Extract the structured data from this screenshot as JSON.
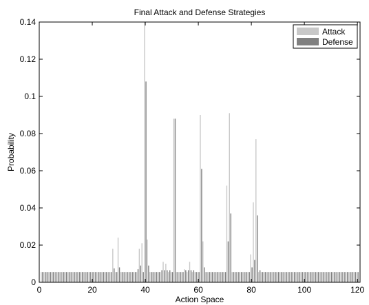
{
  "chart_data": {
    "type": "bar",
    "title": "Final Attack and Defense Strategies",
    "xlabel": "Action Space",
    "ylabel": "Probability",
    "xlim": [
      0,
      121
    ],
    "ylim": [
      0,
      0.14
    ],
    "xticks": [
      "0",
      "20",
      "40",
      "60",
      "80",
      "100",
      "120"
    ],
    "yticks": [
      "0",
      "0.02",
      "0.04",
      "0.06",
      "0.08",
      "0.1",
      "0.12",
      "0.14"
    ],
    "grid": false,
    "legend": "top-right",
    "baseline": 0.0055,
    "series": [
      {
        "name": "Attack",
        "color": "#c8c8c8",
        "x": [
          28,
          30,
          38,
          39,
          40,
          41,
          47,
          48,
          51,
          55,
          57,
          61,
          62,
          71,
          72,
          80,
          81,
          82
        ],
        "values": [
          0.018,
          0.024,
          0.018,
          0.021,
          0.14,
          0.023,
          0.011,
          0.01,
          0.088,
          0.007,
          0.011,
          0.09,
          0.022,
          0.052,
          0.091,
          0.015,
          0.043,
          0.077
        ]
      },
      {
        "name": "Defense",
        "color": "#808080",
        "x": [
          28,
          30,
          37,
          38,
          40,
          41,
          46,
          47,
          48,
          49,
          51,
          55,
          56,
          57,
          58,
          61,
          62,
          71,
          72,
          80,
          81,
          82,
          83
        ],
        "values": [
          0.0075,
          0.008,
          0.007,
          0.009,
          0.108,
          0.009,
          0.0065,
          0.0065,
          0.0065,
          0.0065,
          0.088,
          0.0065,
          0.0065,
          0.0065,
          0.0065,
          0.061,
          0.008,
          0.022,
          0.037,
          0.008,
          0.012,
          0.036,
          0.0065
        ]
      }
    ]
  }
}
